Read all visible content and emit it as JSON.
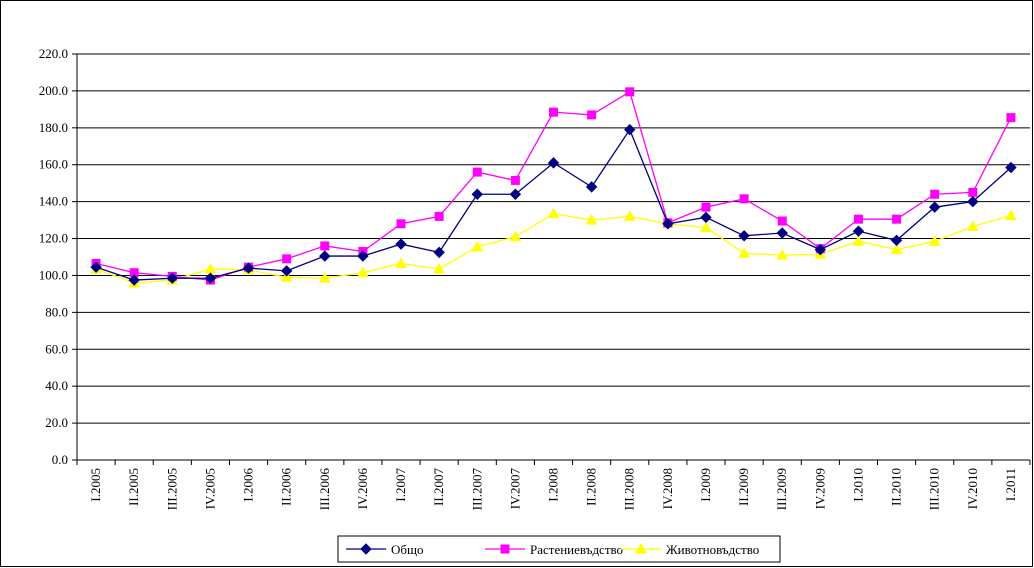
{
  "chart_data": {
    "type": "line",
    "categories": [
      "I.2005",
      "II.2005",
      "III.2005",
      "IV.2005",
      "I.2006",
      "II.2006",
      "III.2006",
      "IV.2006",
      "I.2007",
      "II.2007",
      "III.2007",
      "IV.2007",
      "I.2008",
      "II.2008",
      "III.2008",
      "IV.2008",
      "I.2009",
      "II.2009",
      "III.2009",
      "IV.2009",
      "I.2010",
      "II.2010",
      "III.2010",
      "IV.2010",
      "I.2011"
    ],
    "ylim": [
      0,
      220
    ],
    "yticks": [
      "0.0",
      "20.0",
      "40.0",
      "60.0",
      "80.0",
      "100.0",
      "120.0",
      "140.0",
      "160.0",
      "180.0",
      "200.0",
      "220.0"
    ],
    "grid": true,
    "legend_position": "bottom",
    "series": [
      {
        "name": "Общо",
        "color": "#000080",
        "marker": "diamond",
        "values": [
          104.5,
          97.5,
          98.5,
          98.5,
          104.0,
          102.5,
          110.5,
          110.5,
          117.0,
          112.5,
          144.0,
          144.0,
          161.0,
          148.0,
          179.0,
          128.0,
          131.5,
          121.5,
          123.0,
          114.0,
          124.0,
          119.0,
          137.0,
          140.0,
          158.5
        ]
      },
      {
        "name": "Растениевъдство",
        "color": "#FF00FF",
        "marker": "square",
        "values": [
          106.5,
          101.5,
          99.5,
          97.5,
          104.5,
          109.0,
          116.0,
          113.0,
          128.0,
          132.0,
          156.0,
          151.5,
          188.5,
          187.0,
          199.5,
          128.5,
          137.0,
          141.5,
          129.5,
          114.5,
          130.5,
          130.5,
          144.0,
          145.0,
          185.5
        ]
      },
      {
        "name": "Животновъдство",
        "color": "#FFFF00",
        "marker": "triangle",
        "values": [
          103.5,
          96.0,
          97.5,
          103.5,
          103.0,
          99.0,
          98.5,
          101.5,
          106.5,
          103.5,
          115.5,
          121.0,
          133.5,
          130.0,
          132.0,
          128.0,
          126.0,
          112.0,
          111.0,
          111.5,
          118.5,
          114.0,
          118.5,
          126.5,
          132.5
        ]
      }
    ]
  }
}
